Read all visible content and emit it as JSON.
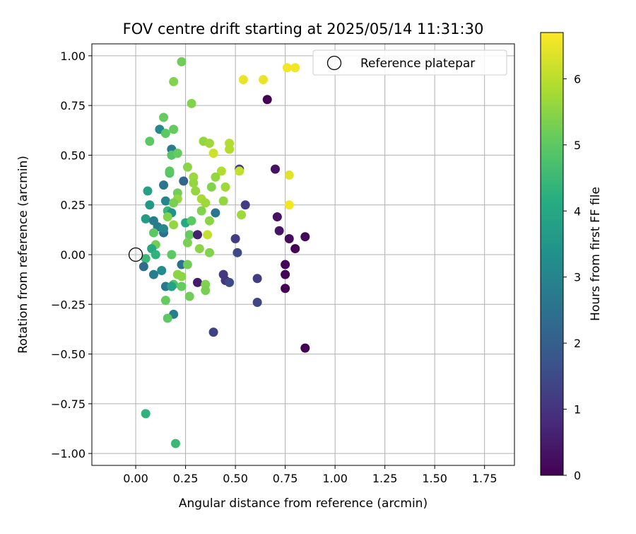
{
  "chart_data": {
    "type": "scatter",
    "title": "FOV centre drift starting at 2025/05/14 11:31:30",
    "xlabel": "Angular distance from reference (arcmin)",
    "ylabel": "Rotation from reference (arcmin)",
    "xlim": [
      -0.22,
      1.9
    ],
    "ylim": [
      -1.06,
      1.06
    ],
    "x_ticks": [
      0.0,
      0.25,
      0.5,
      0.75,
      1.0,
      1.25,
      1.5,
      1.75
    ],
    "x_tick_labels": [
      "0.00",
      "0.25",
      "0.50",
      "0.75",
      "1.00",
      "1.25",
      "1.50",
      "1.75"
    ],
    "y_ticks": [
      -1.0,
      -0.75,
      -0.5,
      -0.25,
      0.0,
      0.25,
      0.5,
      0.75,
      1.0
    ],
    "y_tick_labels": [
      "−1.00",
      "−0.75",
      "−0.50",
      "−0.25",
      "0.00",
      "0.25",
      "0.50",
      "0.75",
      "1.00"
    ],
    "grid": true,
    "legend": {
      "position": "top-right",
      "entries": [
        "Reference platepar"
      ]
    },
    "reference_point": {
      "x": 0.0,
      "y": 0.0
    },
    "colorbar": {
      "label": "Hours from first FF file",
      "colormap": "viridis",
      "range": [
        0,
        6.7
      ],
      "ticks": [
        0,
        1,
        2,
        3,
        4,
        5,
        6
      ],
      "tick_labels": [
        "0",
        "1",
        "2",
        "3",
        "4",
        "5",
        "6"
      ]
    },
    "points": [
      [
        0.23,
        0.97,
        5.2
      ],
      [
        0.19,
        0.87,
        5.4
      ],
      [
        0.28,
        0.76,
        5.4
      ],
      [
        0.54,
        0.88,
        6.5
      ],
      [
        0.64,
        0.88,
        6.5
      ],
      [
        0.76,
        0.94,
        6.6
      ],
      [
        0.8,
        0.94,
        6.6
      ],
      [
        0.66,
        0.78,
        0.0
      ],
      [
        0.14,
        0.69,
        5.1
      ],
      [
        0.12,
        0.63,
        3.1
      ],
      [
        0.15,
        0.61,
        5.0
      ],
      [
        0.19,
        0.63,
        5.1
      ],
      [
        0.07,
        0.57,
        5.0
      ],
      [
        0.34,
        0.57,
        5.6
      ],
      [
        0.37,
        0.56,
        5.7
      ],
      [
        0.47,
        0.56,
        5.9
      ],
      [
        0.47,
        0.53,
        5.9
      ],
      [
        0.39,
        0.51,
        6.2
      ],
      [
        0.18,
        0.53,
        2.8
      ],
      [
        0.18,
        0.5,
        4.9
      ],
      [
        0.21,
        0.51,
        5.1
      ],
      [
        0.52,
        0.43,
        1.2
      ],
      [
        0.52,
        0.42,
        6.1
      ],
      [
        0.43,
        0.42,
        5.9
      ],
      [
        0.7,
        0.43,
        0.3
      ],
      [
        0.77,
        0.4,
        6.4
      ],
      [
        0.26,
        0.44,
        5.5
      ],
      [
        0.17,
        0.41,
        4.8
      ],
      [
        0.17,
        0.42,
        5.0
      ],
      [
        0.29,
        0.39,
        5.7
      ],
      [
        0.14,
        0.35,
        2.6
      ],
      [
        0.24,
        0.37,
        2.2
      ],
      [
        0.29,
        0.36,
        5.6
      ],
      [
        0.4,
        0.39,
        5.6
      ],
      [
        0.38,
        0.34,
        5.4
      ],
      [
        0.45,
        0.34,
        5.7
      ],
      [
        0.3,
        0.32,
        5.6
      ],
      [
        0.21,
        0.31,
        5.2
      ],
      [
        0.06,
        0.32,
        3.8
      ],
      [
        0.07,
        0.25,
        3.6
      ],
      [
        0.15,
        0.27,
        3.0
      ],
      [
        0.21,
        0.28,
        5.6
      ],
      [
        0.19,
        0.26,
        5.3
      ],
      [
        0.33,
        0.28,
        5.8
      ],
      [
        0.35,
        0.26,
        5.7
      ],
      [
        0.44,
        0.27,
        5.6
      ],
      [
        0.55,
        0.25,
        1.2
      ],
      [
        0.77,
        0.25,
        6.6
      ],
      [
        0.71,
        0.19,
        0.3
      ],
      [
        0.16,
        0.22,
        4.4
      ],
      [
        0.18,
        0.21,
        3.4
      ],
      [
        0.4,
        0.21,
        2.6
      ],
      [
        0.33,
        0.22,
        5.4
      ],
      [
        0.53,
        0.2,
        5.7
      ],
      [
        0.72,
        0.12,
        0.4
      ],
      [
        0.05,
        0.18,
        3.7
      ],
      [
        0.09,
        0.17,
        2.8
      ],
      [
        0.16,
        0.19,
        5.4
      ],
      [
        0.19,
        0.15,
        5.6
      ],
      [
        0.37,
        0.17,
        5.5
      ],
      [
        0.25,
        0.16,
        4.0
      ],
      [
        0.28,
        0.17,
        5.0
      ],
      [
        0.11,
        0.14,
        2.8
      ],
      [
        0.14,
        0.11,
        2.4
      ],
      [
        0.14,
        0.13,
        3.1
      ],
      [
        0.09,
        0.11,
        5.0
      ],
      [
        0.27,
        0.1,
        5.1
      ],
      [
        0.36,
        0.1,
        6.1
      ],
      [
        0.31,
        0.1,
        0.6
      ],
      [
        0.5,
        0.08,
        1.2
      ],
      [
        0.26,
        0.06,
        5.3
      ],
      [
        0.1,
        0.05,
        5.2
      ],
      [
        0.77,
        0.08,
        0.2
      ],
      [
        0.85,
        0.09,
        0.1
      ],
      [
        0.8,
        0.03,
        0.0
      ],
      [
        0.32,
        0.03,
        5.5
      ],
      [
        0.37,
        0.01,
        5.4
      ],
      [
        0.51,
        0.01,
        1.5
      ],
      [
        0.08,
        0.03,
        4.0
      ],
      [
        0.1,
        0.0,
        4.3
      ],
      [
        0.05,
        -0.02,
        4.5
      ],
      [
        0.18,
        0.0,
        5.0
      ],
      [
        0.04,
        -0.06,
        2.3
      ],
      [
        0.23,
        -0.05,
        2.5
      ],
      [
        0.26,
        -0.05,
        5.2
      ],
      [
        0.75,
        -0.05,
        0.1
      ],
      [
        0.09,
        -0.1,
        2.8
      ],
      [
        0.13,
        -0.08,
        3.2
      ],
      [
        0.44,
        -0.1,
        1.1
      ],
      [
        0.21,
        -0.1,
        5.5
      ],
      [
        0.23,
        -0.11,
        5.5
      ],
      [
        0.75,
        -0.1,
        0.1
      ],
      [
        0.45,
        -0.13,
        1.0
      ],
      [
        0.47,
        -0.14,
        1.5
      ],
      [
        0.61,
        -0.12,
        1.2
      ],
      [
        0.31,
        -0.14,
        0.5
      ],
      [
        0.35,
        -0.15,
        5.4
      ],
      [
        0.15,
        -0.16,
        2.7
      ],
      [
        0.19,
        -0.15,
        4.8
      ],
      [
        0.23,
        -0.16,
        5.1
      ],
      [
        0.18,
        -0.16,
        3.8
      ],
      [
        0.35,
        -0.18,
        5.3
      ],
      [
        0.75,
        -0.17,
        0.0
      ],
      [
        0.27,
        -0.21,
        5.2
      ],
      [
        0.15,
        -0.23,
        5.1
      ],
      [
        0.61,
        -0.24,
        1.4
      ],
      [
        0.19,
        -0.3,
        2.8
      ],
      [
        0.16,
        -0.32,
        5.0
      ],
      [
        0.39,
        -0.39,
        1.3
      ],
      [
        0.85,
        -0.47,
        0.0
      ],
      [
        0.05,
        -0.8,
        4.3
      ],
      [
        0.2,
        -0.95,
        4.5
      ]
    ]
  }
}
